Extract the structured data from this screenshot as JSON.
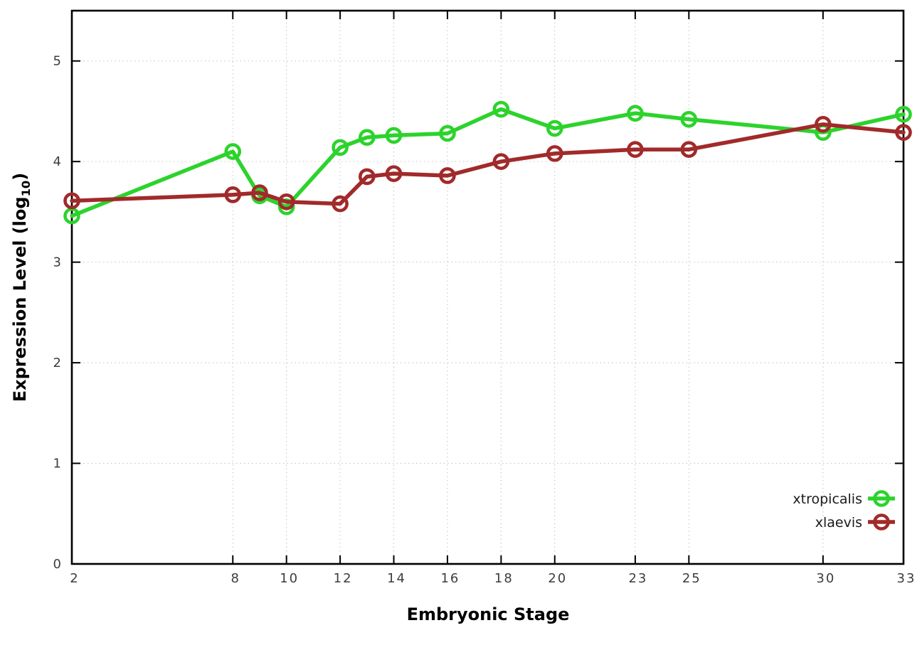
{
  "chart_data": {
    "type": "line",
    "title": "",
    "xlabel": "Embryonic Stage",
    "ylabel": "Expression Level (log10)",
    "ylabel_parts": {
      "main": "Expression Level (log",
      "sub": "10",
      "end": ")"
    },
    "x": [
      2,
      8,
      9,
      10,
      12,
      13,
      14,
      16,
      18,
      20,
      23,
      25,
      30,
      33
    ],
    "x_ticks": [
      2,
      8,
      10,
      12,
      14,
      16,
      18,
      20,
      23,
      25,
      30,
      33
    ],
    "x_tick_labels": [
      "2",
      "8",
      "10",
      "12",
      "14",
      "16",
      "18",
      "20",
      "23",
      "25",
      "30",
      "33"
    ],
    "y_ticks": [
      0,
      1,
      2,
      3,
      4,
      5
    ],
    "y_tick_labels": [
      "0",
      "1",
      "2",
      "3",
      "4",
      "5"
    ],
    "xlim": [
      2,
      33
    ],
    "ylim": [
      0,
      5.5
    ],
    "grid": true,
    "legend_position": "inside-bottom-right",
    "series": [
      {
        "name": "xtropicalis",
        "color": "#2cd32c",
        "marker": "open-circle",
        "values": [
          3.46,
          4.1,
          3.66,
          3.55,
          4.14,
          4.24,
          4.26,
          4.28,
          4.52,
          4.33,
          4.48,
          4.42,
          4.29,
          4.47
        ]
      },
      {
        "name": "xlaevis",
        "color": "#a12a2a",
        "marker": "open-circle",
        "values": [
          3.61,
          3.67,
          3.69,
          3.6,
          3.58,
          3.85,
          3.88,
          3.86,
          4.0,
          4.08,
          4.12,
          4.12,
          4.37,
          4.29
        ]
      }
    ],
    "colors": {
      "axis": "#000000",
      "grid": "#c3c3c3",
      "tick_label": "#3d3d3d",
      "legend_text": "#1a1a1a"
    }
  }
}
